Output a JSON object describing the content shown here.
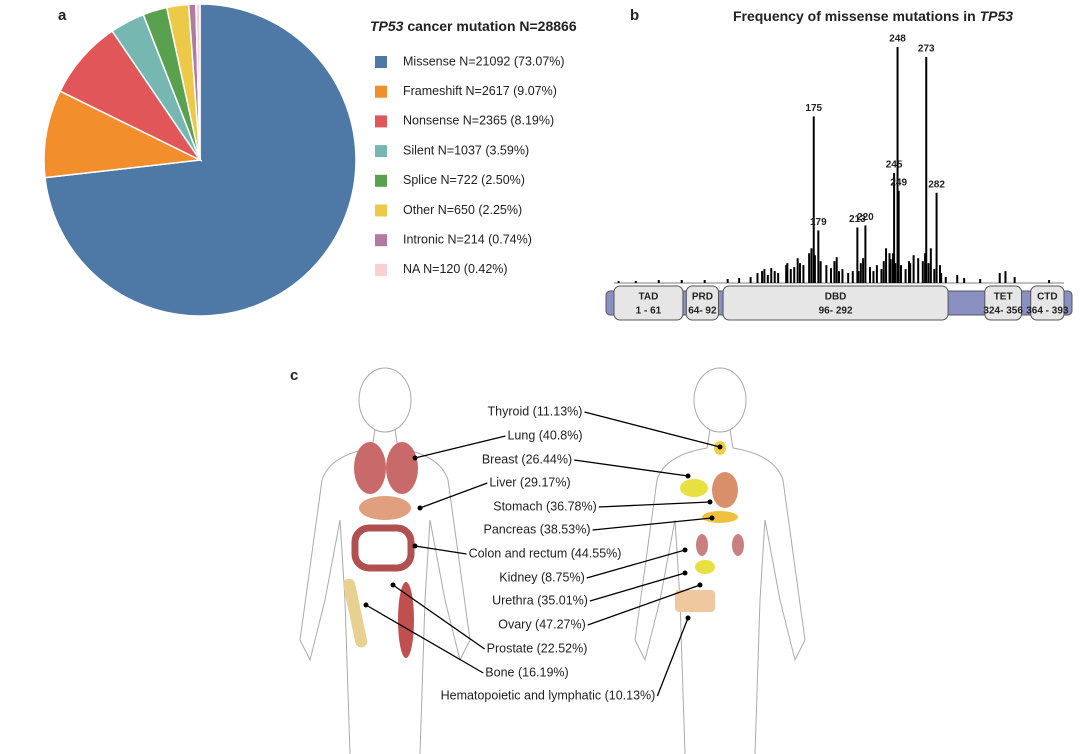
{
  "panel_labels": [
    "a",
    "b",
    "c"
  ],
  "chart_data": [
    {
      "type": "pie",
      "title_gene": "TP53",
      "title": "cancer mutation N=28866",
      "categories": [
        "Missense N=21092 (73.07%)",
        "Frameshift N=2617 (9.07%)",
        "Nonsense N=2365 (8.19%)",
        "Silent N=1037 (3.59%)",
        "Splice N=722 (2.50%)",
        "Other N=650 (2.25%)",
        "Intronic N=214 (0.74%)",
        "NA N=120 (0.42%)"
      ],
      "values": [
        73.07,
        9.07,
        8.19,
        3.59,
        2.5,
        2.25,
        0.74,
        0.42
      ],
      "colors": [
        "#4e79a7",
        "#f28e2b",
        "#e15759",
        "#76b7b2",
        "#59a14f",
        "#edc948",
        "#b07aa1",
        "#f8d0d2"
      ]
    },
    {
      "type": "bar",
      "title": "Frequency of missense mutations in",
      "title_gene": "TP53",
      "xlim": [
        1,
        393
      ],
      "ylim": [
        0,
        240
      ],
      "color": "#000000",
      "x": [
        5,
        20,
        40,
        60,
        80,
        100,
        110,
        120,
        126,
        130,
        132,
        135,
        138,
        141,
        144,
        151,
        152,
        155,
        158,
        161,
        163,
        166,
        171,
        173,
        176,
        181,
        186,
        190,
        193,
        195,
        197,
        200,
        205,
        209,
        214,
        216,
        218,
        224,
        227,
        230,
        234,
        236,
        238,
        241,
        242,
        244,
        246,
        251,
        255,
        258,
        259,
        262,
        266,
        270,
        272,
        275,
        277,
        280,
        285,
        286,
        290,
        300,
        306,
        320,
        337,
        342,
        350,
        380
      ],
      "values": [
        2,
        2,
        3,
        3,
        3,
        4,
        5,
        6,
        10,
        12,
        14,
        8,
        15,
        12,
        10,
        18,
        20,
        14,
        16,
        25,
        20,
        18,
        30,
        35,
        28,
        22,
        18,
        15,
        22,
        26,
        12,
        14,
        10,
        12,
        12,
        20,
        25,
        16,
        12,
        18,
        14,
        22,
        35,
        30,
        24,
        30,
        20,
        18,
        14,
        22,
        20,
        28,
        25,
        22,
        30,
        20,
        35,
        14,
        18,
        10,
        6,
        8,
        5,
        4,
        10,
        12,
        6,
        3
      ],
      "hotspot_x": [
        175,
        179,
        213,
        220,
        245,
        248,
        249,
        273,
        282
      ],
      "hotspot_values": [
        168,
        53,
        56,
        58,
        111,
        238,
        93,
        228,
        91
      ],
      "domains": [
        {
          "name": "TAD",
          "label": "1 - 61",
          "start": 1,
          "end": 61
        },
        {
          "name": "PRD",
          "label": "64- 92",
          "start": 64,
          "end": 92
        },
        {
          "name": "DBD",
          "label": "96- 292",
          "start": 96,
          "end": 292
        },
        {
          "name": "TET",
          "label": "324- 356",
          "start": 324,
          "end": 356
        },
        {
          "name": "CTD",
          "label": "364 - 393",
          "start": 364,
          "end": 393
        }
      ]
    }
  ],
  "organs": [
    "Thyroid (11.13%)",
    "Lung (40.8%)",
    "Breast (26.44%)",
    "Liver (29.17%)",
    "Stomach (36.78%)",
    "Pancreas (38.53%)",
    "Colon and rectum (44.55%)",
    "Kidney (8.75%)",
    "Urethra (35.01%)",
    "Ovary (47.27%)",
    "Prostate (22.52%)",
    "Bone (16.19%)",
    "Hematopoietic and lymphatic (10.13%)"
  ]
}
